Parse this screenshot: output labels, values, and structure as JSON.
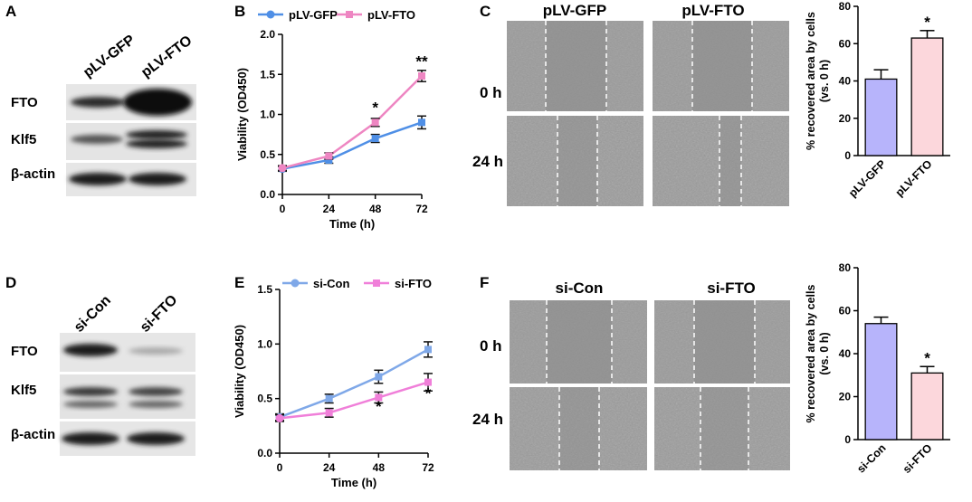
{
  "panels": {
    "A": "A",
    "B": "B",
    "C": "C",
    "D": "D",
    "E": "E",
    "F": "F"
  },
  "western_top": {
    "lanes": [
      "pLV-GFP",
      "pLV-FTO"
    ],
    "rows": [
      "FTO",
      "Klf5",
      "β-actin"
    ]
  },
  "western_bottom": {
    "lanes": [
      "si-Con",
      "si-FTO"
    ],
    "rows": [
      "FTO",
      "Klf5",
      "β-actin"
    ]
  },
  "wound_top": {
    "columns": [
      "pLV-GFP",
      "pLV-FTO"
    ],
    "rows": [
      "0 h",
      "24 h"
    ]
  },
  "wound_bottom": {
    "columns": [
      "si-Con",
      "si-FTO"
    ],
    "rows": [
      "0 h",
      "24 h"
    ]
  },
  "colors": {
    "line_blue": "#4f8fe6",
    "line_pink": "#ee86c2",
    "line_blue_light": "#7fa8e8",
    "line_pink_light": "#f07fd9",
    "bar_blue": "#b7b4fb",
    "bar_pink": "#fcd7dc"
  },
  "chart_data": [
    {
      "id": "B",
      "type": "line",
      "xlabel": "Time (h)",
      "ylabel": "Viability (OD450)",
      "x": [
        0,
        24,
        48,
        72
      ],
      "xticks": [
        "0",
        "24",
        "48",
        "72"
      ],
      "yticks": [
        "0.0",
        "0.5",
        "1.0",
        "1.5",
        "2.0"
      ],
      "ylim": [
        0,
        2.0
      ],
      "series": [
        {
          "name": "pLV-GFP",
          "values": [
            0.32,
            0.43,
            0.7,
            0.9
          ],
          "errors": [
            0.03,
            0.04,
            0.05,
            0.08
          ]
        },
        {
          "name": "pLV-FTO",
          "values": [
            0.33,
            0.48,
            0.9,
            1.48
          ],
          "errors": [
            0.03,
            0.04,
            0.05,
            0.07
          ]
        }
      ],
      "annotations": [
        {
          "x": 48,
          "y": 1.02,
          "text": "*"
        },
        {
          "x": 72,
          "y": 1.6,
          "text": "**"
        }
      ]
    },
    {
      "id": "C",
      "type": "bar",
      "ylabel": "% recovered area by cells",
      "ylabel2": "(vs. 0 h)",
      "categories": [
        "pLV-GFP",
        "pLV-FTO"
      ],
      "values": [
        41,
        63
      ],
      "errors": [
        5,
        4
      ],
      "yticks": [
        "0",
        "20",
        "40",
        "60",
        "80"
      ],
      "ylim": [
        0,
        80
      ],
      "annotations": [
        {
          "category": "pLV-FTO",
          "text": "*"
        }
      ]
    },
    {
      "id": "E",
      "type": "line",
      "xlabel": "Time (h)",
      "ylabel": "Viability (OD450)",
      "x": [
        0,
        24,
        48,
        72
      ],
      "xticks": [
        "0",
        "24",
        "48",
        "72"
      ],
      "yticks": [
        "0.0",
        "0.5",
        "1.0",
        "1.5"
      ],
      "ylim": [
        0,
        1.5
      ],
      "series": [
        {
          "name": "si-Con",
          "values": [
            0.33,
            0.5,
            0.7,
            0.95
          ],
          "errors": [
            0.03,
            0.04,
            0.06,
            0.07
          ]
        },
        {
          "name": "si-FTO",
          "values": [
            0.32,
            0.37,
            0.51,
            0.65
          ],
          "errors": [
            0.03,
            0.04,
            0.05,
            0.08
          ]
        }
      ],
      "annotations": [
        {
          "x": 48,
          "y": 0.38,
          "text": "*"
        },
        {
          "x": 72,
          "y": 0.5,
          "text": "*"
        }
      ]
    },
    {
      "id": "F",
      "type": "bar",
      "ylabel": "% recovered area by cells",
      "ylabel2": "(vs. 0 h)",
      "categories": [
        "si-Con",
        "si-FTO"
      ],
      "values": [
        54,
        31
      ],
      "errors": [
        3,
        3
      ],
      "yticks": [
        "0",
        "20",
        "40",
        "60",
        "80"
      ],
      "ylim": [
        0,
        80
      ],
      "annotations": [
        {
          "category": "si-FTO",
          "text": "*"
        }
      ]
    }
  ]
}
